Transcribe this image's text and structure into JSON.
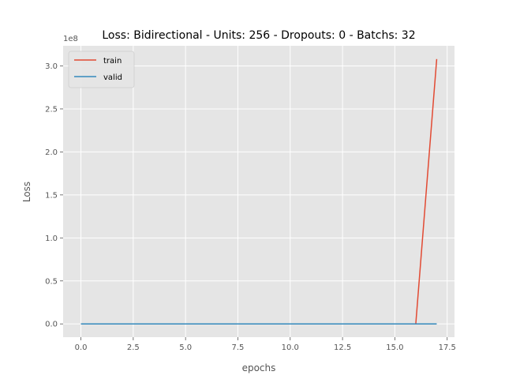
{
  "chart_data": {
    "type": "line",
    "title": "Loss: Bidirectional - Units: 256 - Dropouts: 0 - Batchs: 32",
    "xlabel": "epochs",
    "ylabel": "Loss",
    "y_offset_label": "1e8",
    "xlim": [
      -0.85,
      17.85
    ],
    "ylim": [
      -0.154,
      3.234
    ],
    "xticks": [
      0.0,
      2.5,
      5.0,
      7.5,
      10.0,
      12.5,
      15.0,
      17.5
    ],
    "xtick_labels": [
      "0.0",
      "2.5",
      "5.0",
      "7.5",
      "10.0",
      "12.5",
      "15.0",
      "17.5"
    ],
    "yticks": [
      0.0,
      0.5,
      1.0,
      1.5,
      2.0,
      2.5,
      3.0
    ],
    "ytick_labels": [
      "0.0",
      "0.5",
      "1.0",
      "1.5",
      "2.0",
      "2.5",
      "3.0"
    ],
    "grid": true,
    "legend": "top-left",
    "style": "ggplot",
    "x": [
      0,
      1,
      2,
      3,
      4,
      5,
      6,
      7,
      8,
      9,
      10,
      11,
      12,
      13,
      14,
      15,
      16,
      17
    ],
    "series": [
      {
        "name": "train",
        "color": "#E24A33",
        "values": [
          0.0001,
          0.0001,
          0.0001,
          0.0001,
          0.0001,
          0.0001,
          0.0001,
          0.0001,
          0.0001,
          0.0001,
          0.0001,
          0.0001,
          0.0001,
          0.0001,
          0.0001,
          0.0001,
          0.0001,
          3.08
        ]
      },
      {
        "name": "valid",
        "color": "#348ABD",
        "values": [
          0.0001,
          0.0001,
          0.0001,
          0.0001,
          0.0001,
          0.0001,
          0.0001,
          0.0001,
          0.0001,
          0.0001,
          0.0001,
          0.0001,
          0.0001,
          0.0001,
          0.0001,
          0.0001,
          0.0001,
          0.0001
        ]
      }
    ]
  }
}
